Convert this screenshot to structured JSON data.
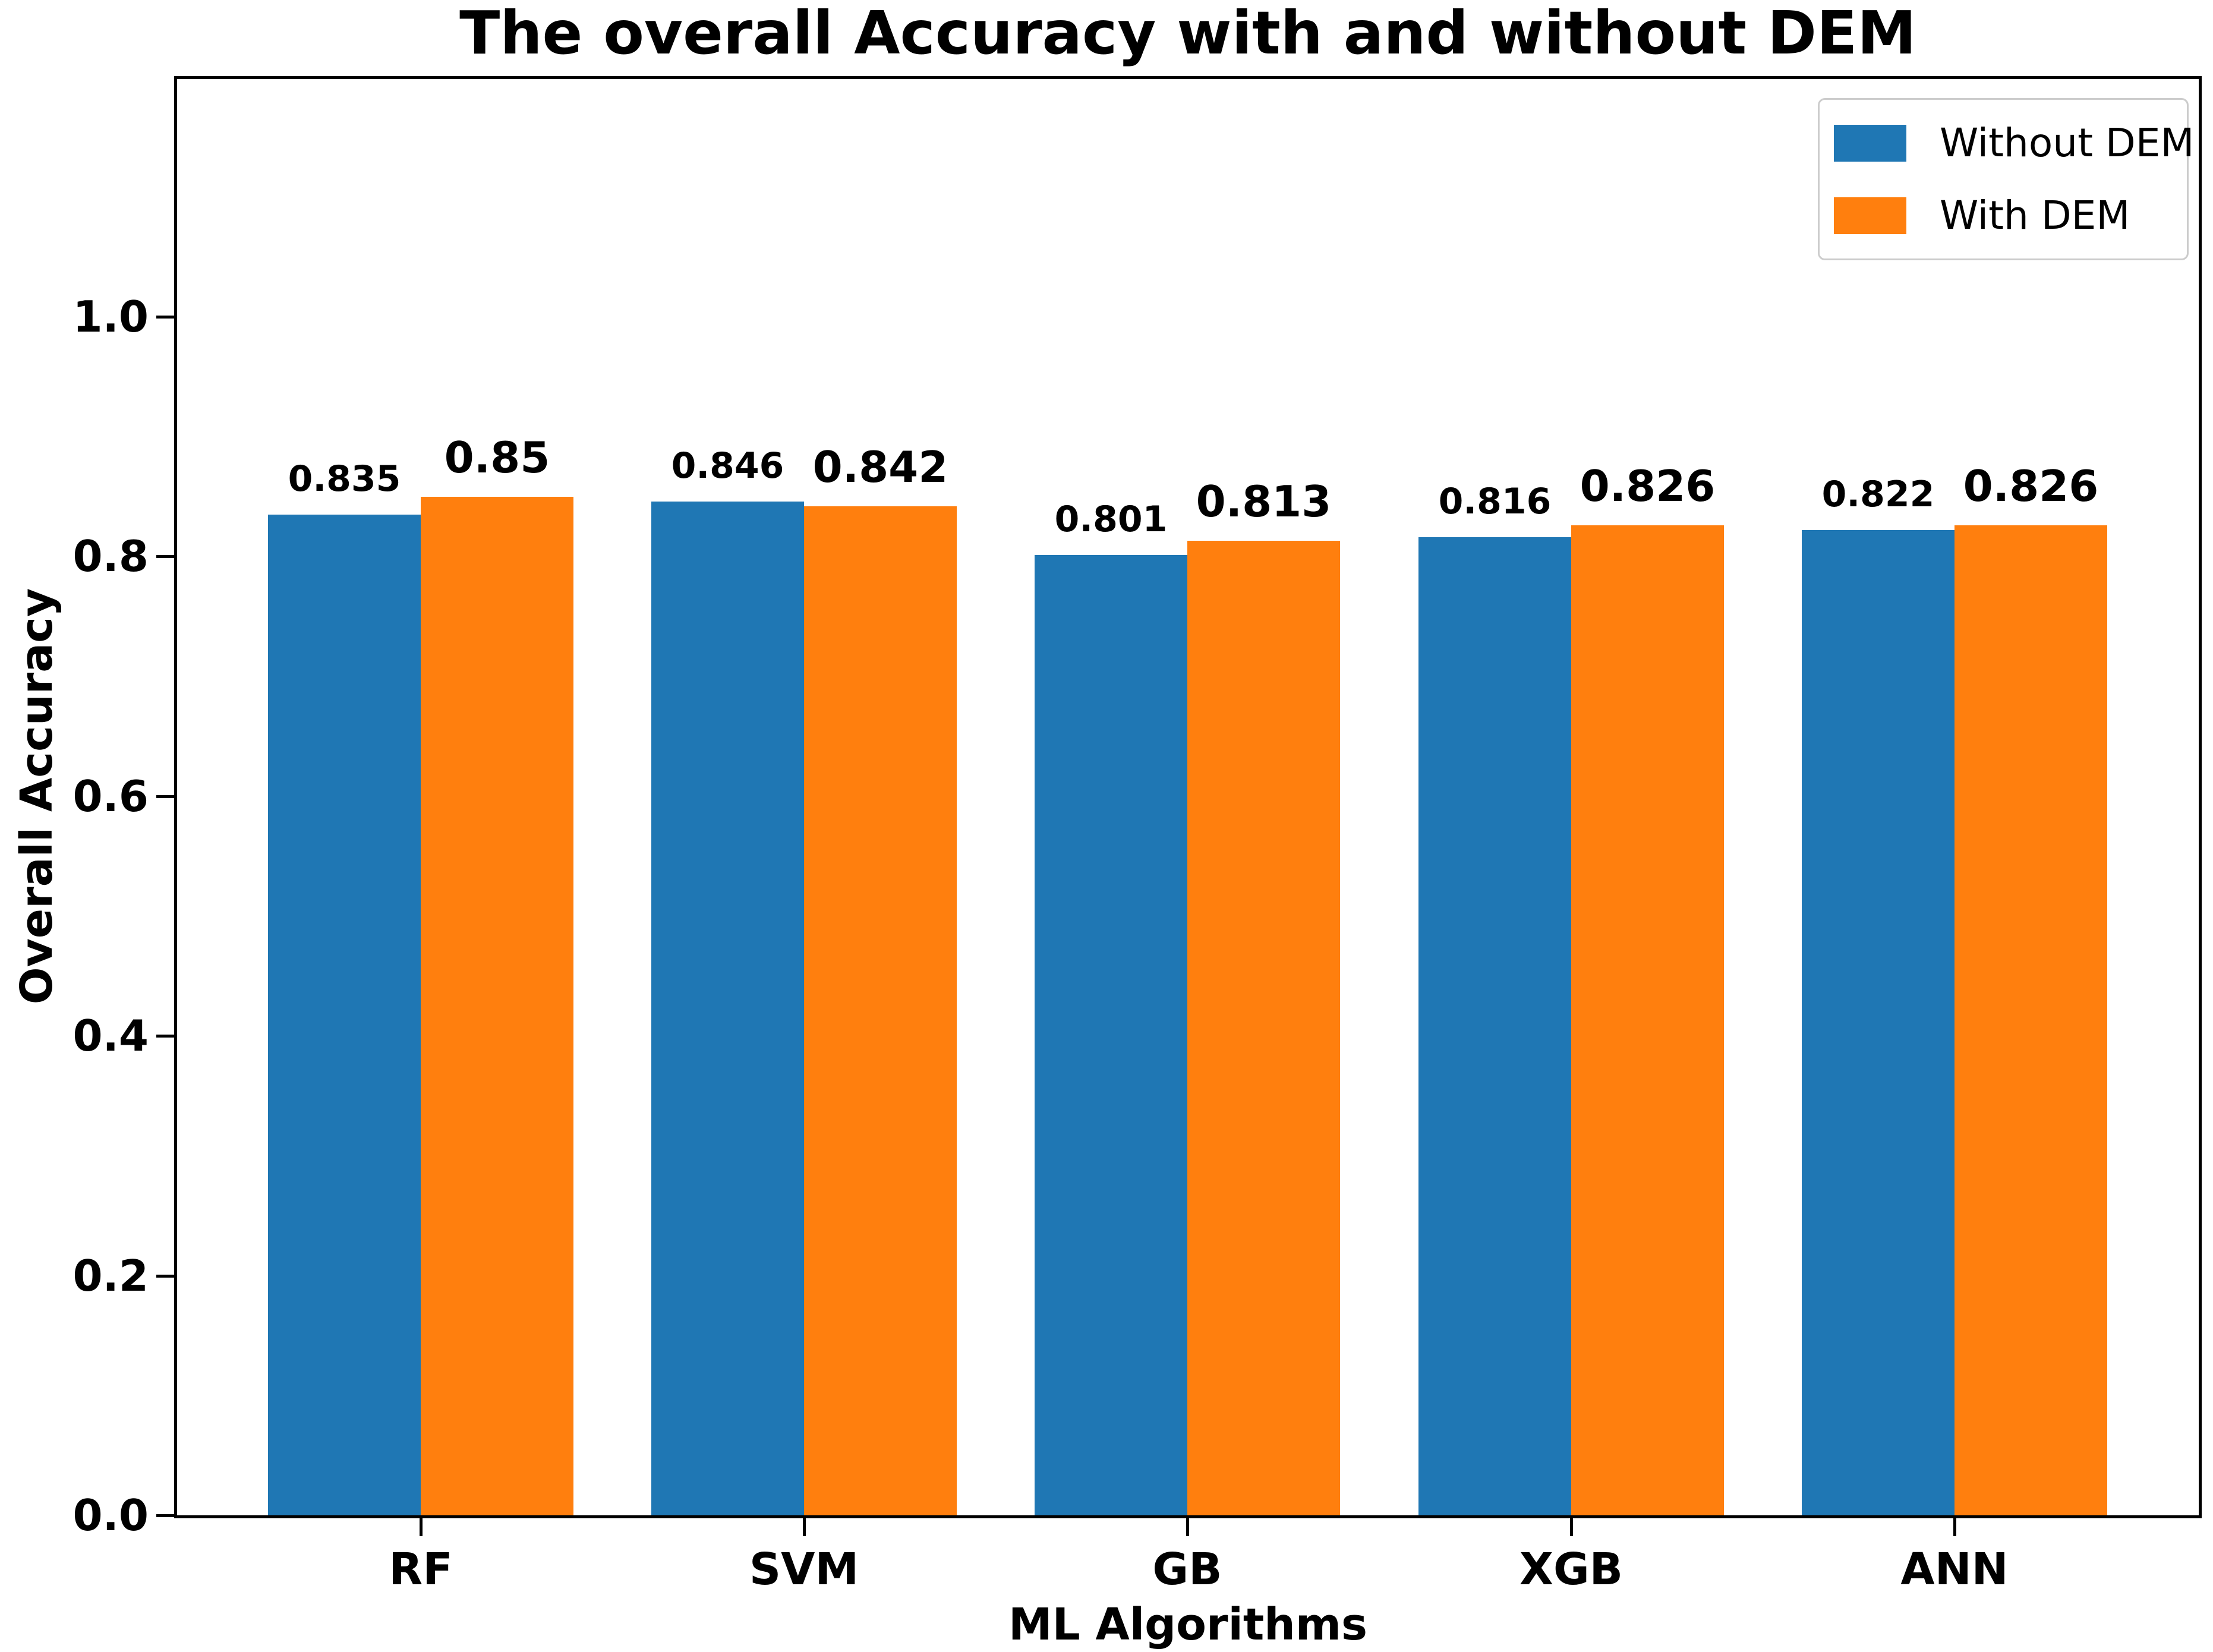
{
  "chart_data": {
    "type": "bar",
    "title": "The overall Accuracy with and without DEM",
    "xlabel": "ML Algorithms",
    "ylabel": "Overall Accuracy",
    "categories": [
      "RF",
      "SVM",
      "GB",
      "XGB",
      "ANN"
    ],
    "series": [
      {
        "name": "Without DEM",
        "color": "#1f77b4",
        "values": [
          0.835,
          0.846,
          0.801,
          0.816,
          0.822
        ],
        "labels": [
          "0.835",
          "0.846",
          "0.801",
          "0.816",
          "0.822"
        ]
      },
      {
        "name": "With DEM",
        "color": "#ff7f0e",
        "values": [
          0.85,
          0.842,
          0.813,
          0.826,
          0.826
        ],
        "labels": [
          "0.85",
          "0.842",
          "0.813",
          "0.826",
          "0.826"
        ]
      }
    ],
    "yticks": [
      "0.0",
      "0.2",
      "0.4",
      "0.6",
      "0.8",
      "1.0"
    ],
    "ylim": [
      0,
      1.2
    ],
    "bar_width_ratio": 0.4,
    "grid": false,
    "legend_position": "upper right",
    "spine_color": "#000000",
    "background_color": "#ffffff",
    "text_color": "#000000"
  }
}
